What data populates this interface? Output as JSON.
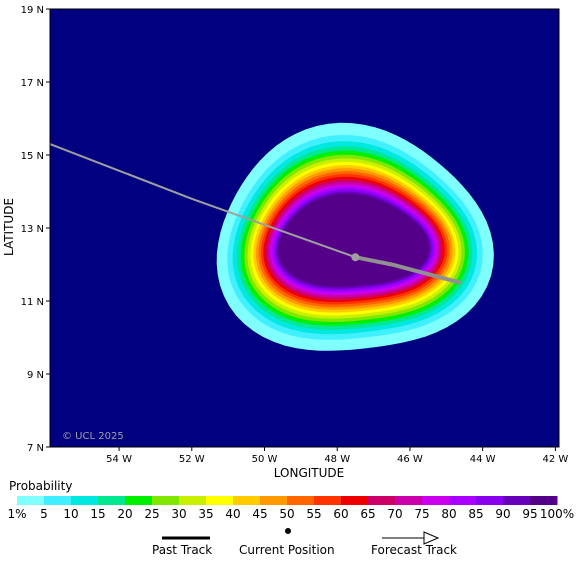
{
  "map": {
    "copyright": "© UCL 2025",
    "x_axis_title": "LONGITUDE",
    "y_axis_title": "LATITUDE",
    "lon_ticks": [
      {
        "value": -54,
        "label": "54 W"
      },
      {
        "value": -52,
        "label": "52 W"
      },
      {
        "value": -50,
        "label": "50 W"
      },
      {
        "value": -48,
        "label": "48 W"
      },
      {
        "value": -46,
        "label": "46 W"
      },
      {
        "value": -44,
        "label": "44 W"
      },
      {
        "value": -42,
        "label": "42 W"
      }
    ],
    "lat_ticks": [
      {
        "value": 7,
        "label": "7 N"
      },
      {
        "value": 9,
        "label": "9 N"
      },
      {
        "value": 11,
        "label": "11 N"
      },
      {
        "value": 13,
        "label": "13 N"
      },
      {
        "value": 15,
        "label": "15 N"
      },
      {
        "value": 17,
        "label": "17 N"
      },
      {
        "value": 19,
        "label": "19 N"
      }
    ],
    "lon_range": [
      -55.9,
      -41.9
    ],
    "lat_range": [
      7,
      19
    ],
    "background_color": "#000080",
    "probability_center": {
      "lon": -47.6,
      "lat": 12.6
    },
    "past_track": [
      {
        "lon": -55.9,
        "lat": 15.3
      },
      {
        "lon": -52.0,
        "lat": 13.8
      },
      {
        "lon": -47.5,
        "lat": 12.2
      }
    ],
    "current_position": {
      "lon": -47.5,
      "lat": 12.2
    },
    "forecast_track": [
      {
        "lon": -47.5,
        "lat": 12.2
      },
      {
        "lon": -46.5,
        "lat": 12.0
      },
      {
        "lon": -44.6,
        "lat": 11.5
      }
    ]
  },
  "legend": {
    "title": "Probability",
    "labels": [
      "1%",
      "5",
      "10",
      "15",
      "20",
      "25",
      "30",
      "35",
      "40",
      "45",
      "50",
      "55",
      "60",
      "65",
      "70",
      "75",
      "80",
      "85",
      "90",
      "95",
      "100%"
    ],
    "colors": [
      "#80ffff",
      "#40f0ff",
      "#00e8e0",
      "#00e890",
      "#00f000",
      "#80e800",
      "#c8f000",
      "#ffff00",
      "#ffcc00",
      "#ff9900",
      "#ff6600",
      "#ff3300",
      "#ee0000",
      "#cc0066",
      "#cc00aa",
      "#cc00ee",
      "#aa00ff",
      "#8800ee",
      "#6600bb",
      "#550088"
    ],
    "key_past_track": "Past Track",
    "key_current_position": "Current Position",
    "key_forecast_track": "Forecast Track"
  }
}
